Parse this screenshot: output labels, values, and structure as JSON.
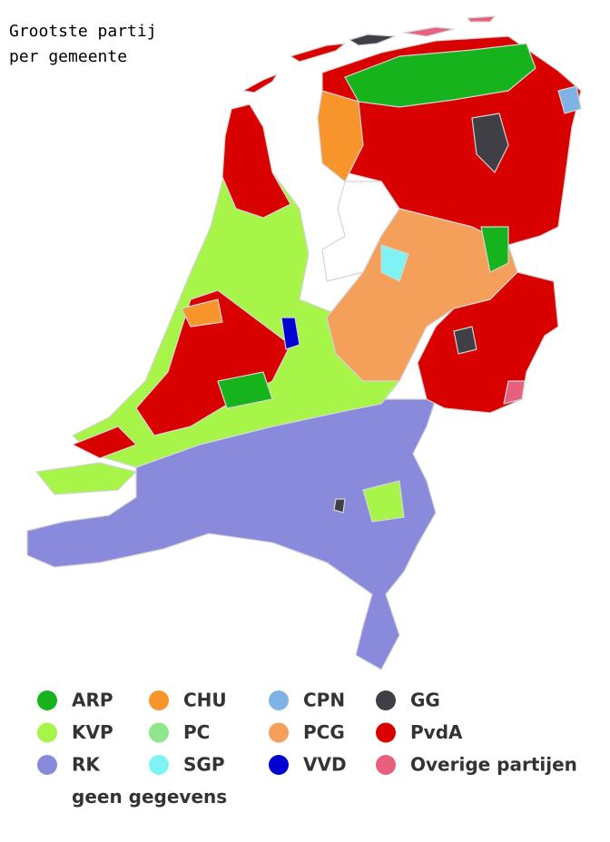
{
  "header": {
    "title_lines": [
      "Grootste partij",
      "per gemeente"
    ]
  },
  "legend": {
    "items": [
      {
        "label": "ARP",
        "color": "#17b31d"
      },
      {
        "label": "KVP",
        "color": "#a8f54a"
      },
      {
        "label": "RK",
        "color": "#8a8adc"
      },
      {
        "label": "geen gegevens",
        "color": "#ffffff"
      },
      {
        "label": "CHU",
        "color": "#f7952c"
      },
      {
        "label": "PC",
        "color": "#8fe58a"
      },
      {
        "label": "SGP",
        "color": "#7ff3f3"
      },
      {
        "label": "CPN",
        "color": "#7fb2e5"
      },
      {
        "label": "PCG",
        "color": "#f5a05a"
      },
      {
        "label": "VVD",
        "color": "#0000d0"
      },
      {
        "label": "GG",
        "color": "#3f3f45"
      },
      {
        "label": "PvdA",
        "color": "#d90000"
      },
      {
        "label": "Overige partijen",
        "color": "#e8607e"
      }
    ]
  }
}
